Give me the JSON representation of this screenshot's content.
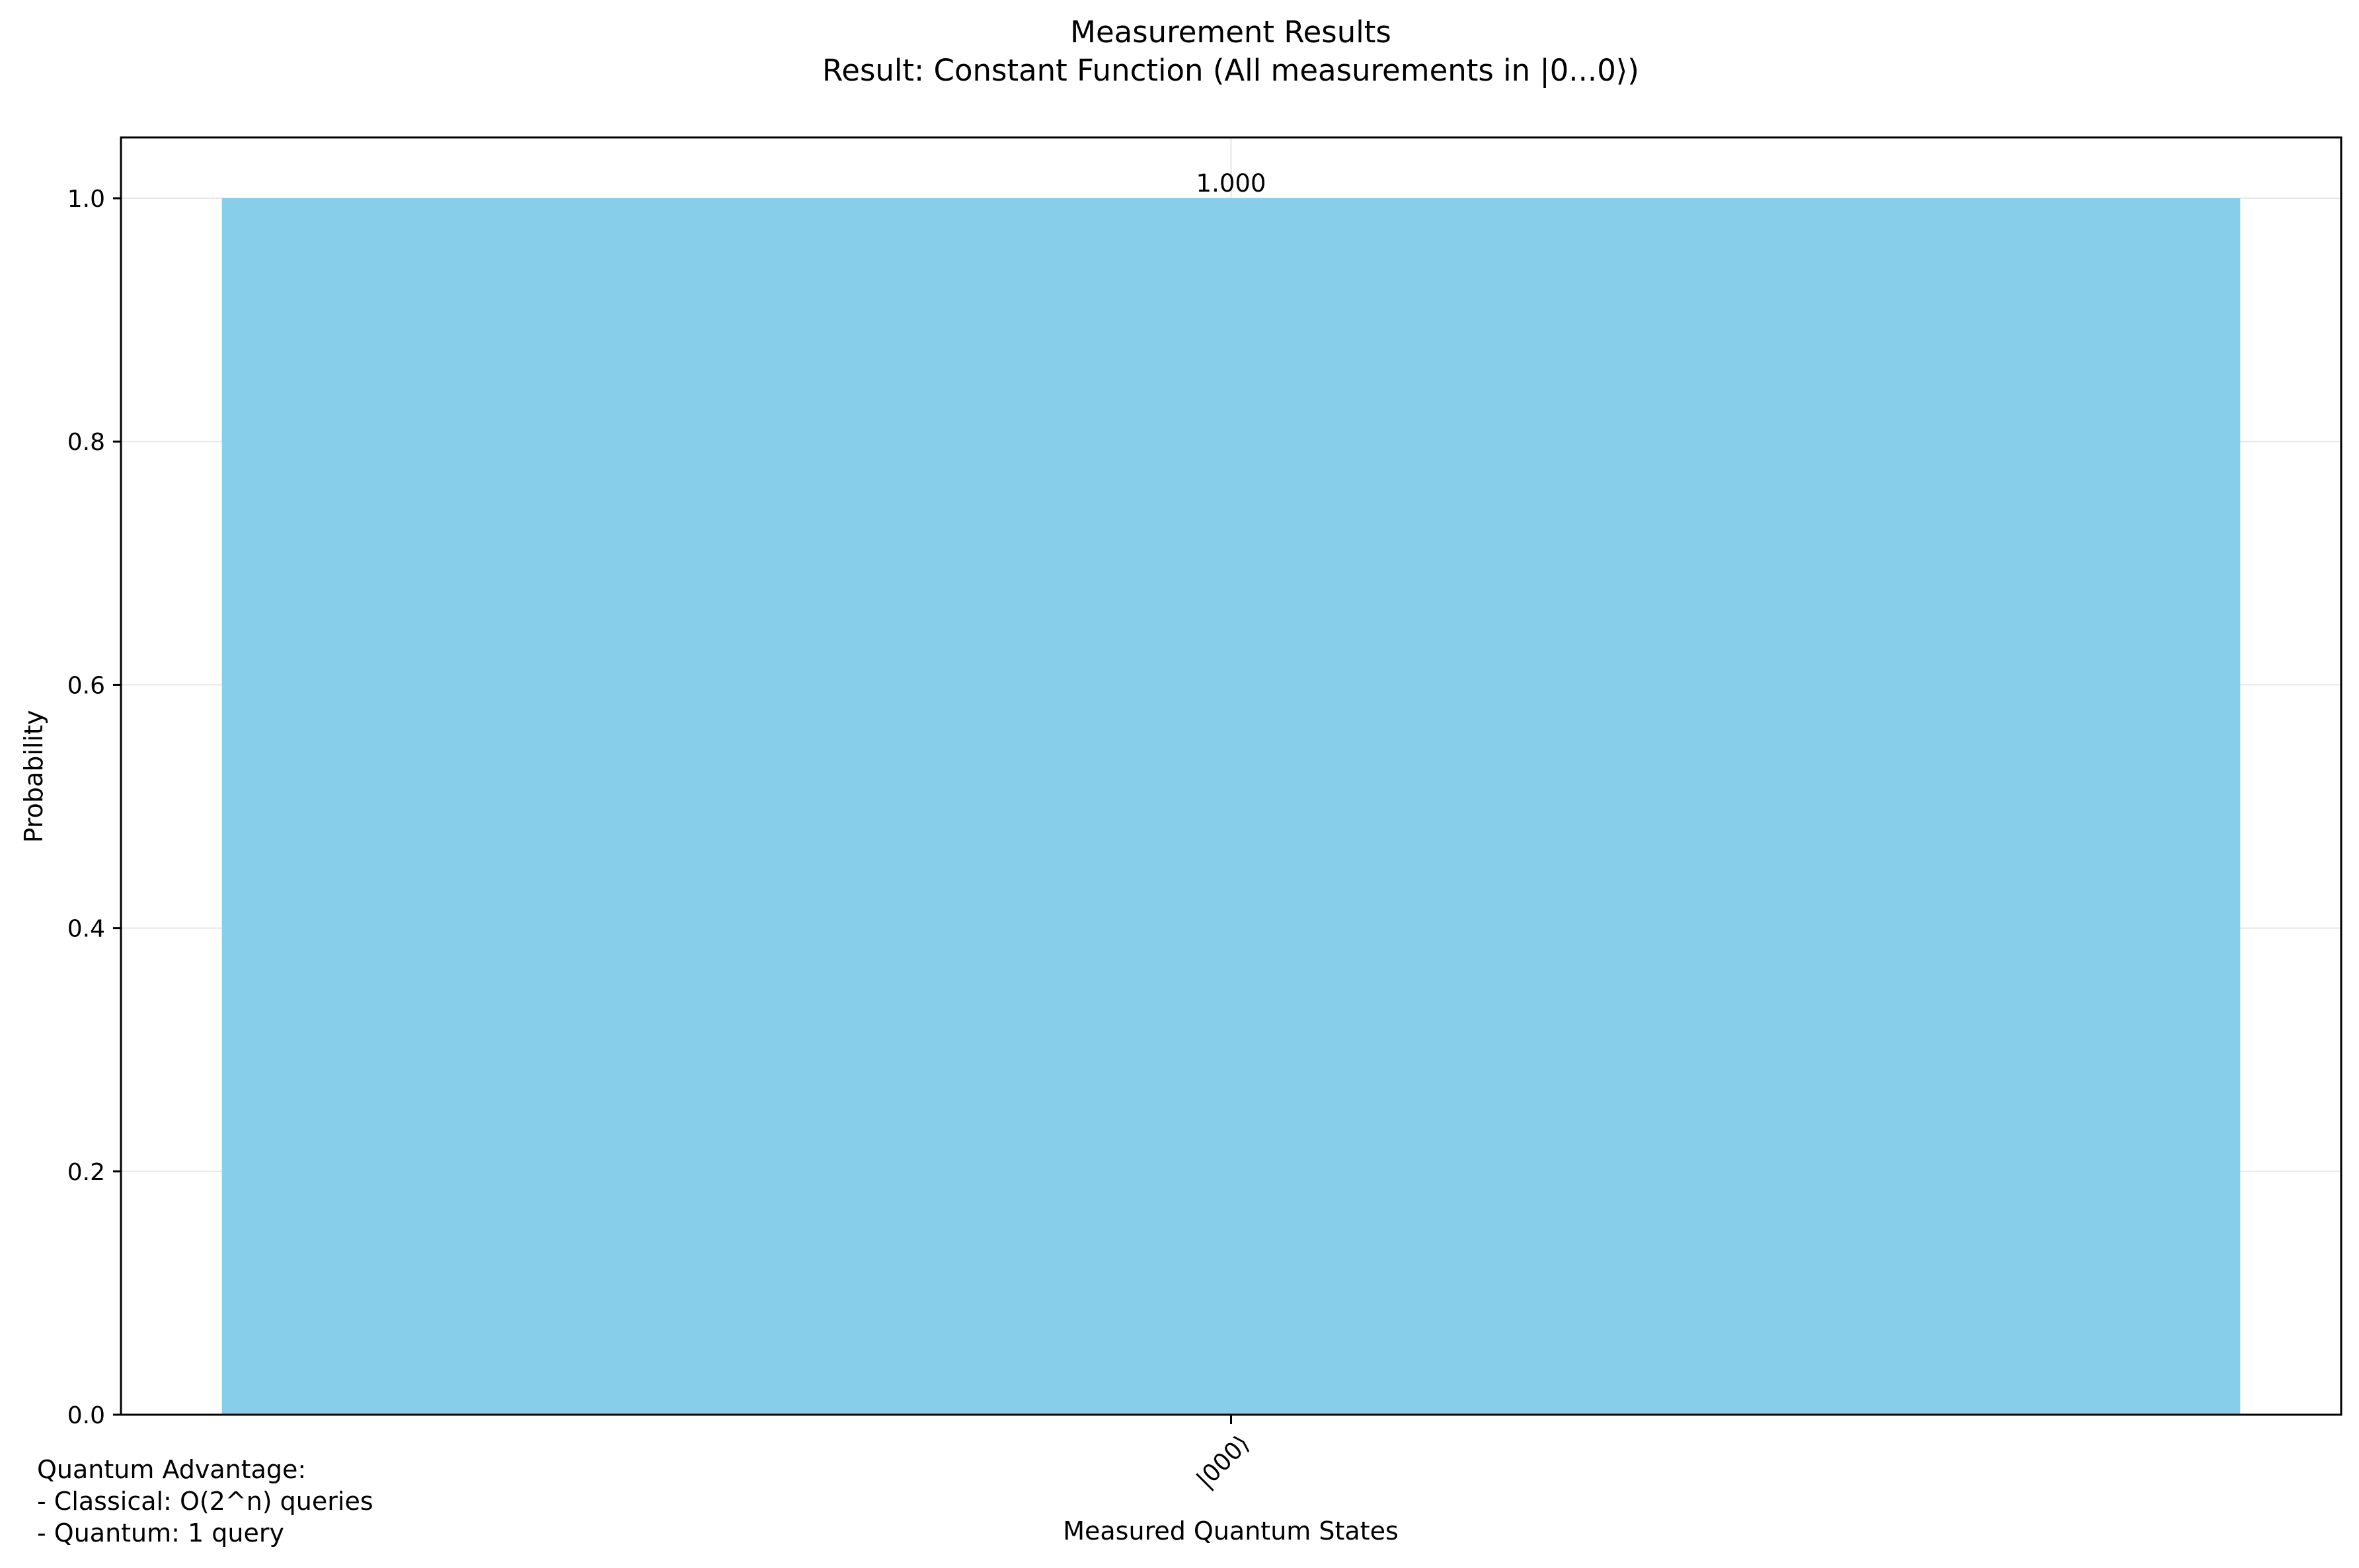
{
  "chart_data": {
    "type": "bar",
    "title": "Measurement Results",
    "subtitle": "Result: Constant Function (All measurements in |0...0⟩)",
    "xlabel": "Measured Quantum States",
    "ylabel": "Probability",
    "categories": [
      "|000⟩"
    ],
    "values": [
      1.0
    ],
    "data_labels": [
      "1.000"
    ],
    "ylim": [
      0,
      1.05
    ],
    "yticks": [
      "0.0",
      "0.2",
      "0.4",
      "0.6",
      "0.8",
      "1.0"
    ],
    "grid": true,
    "bar_color": "#87CEEB",
    "x_tick_rotation_deg": 45
  },
  "annotation": {
    "lines": [
      "Quantum Advantage:",
      "- Classical: O(2^n) queries",
      "- Quantum: 1 query"
    ]
  }
}
